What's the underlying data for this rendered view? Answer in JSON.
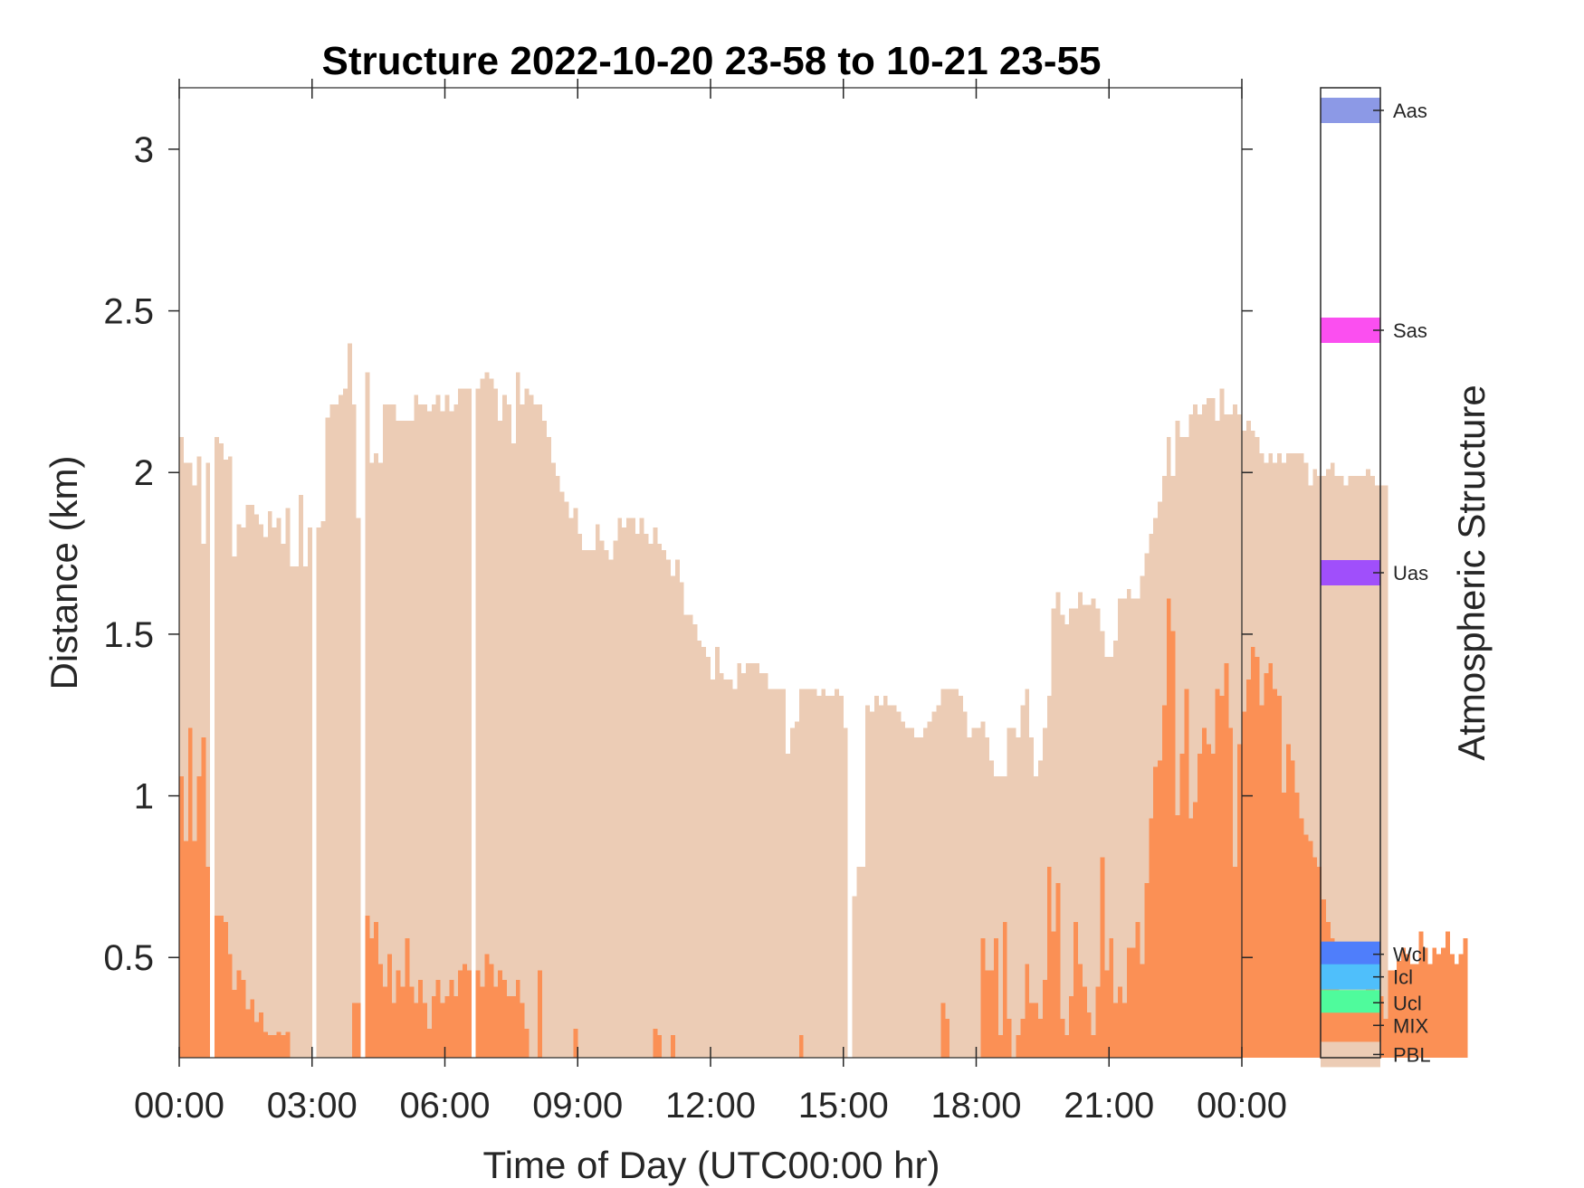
{
  "chart_data": {
    "type": "bar",
    "title": "Structure 2022-10-20 23-58 to 10-21 23-55",
    "xlabel": "Time of Day (UTC00:00 hr)",
    "ylabel": "Distance (km)",
    "xlim": [
      0,
      24
    ],
    "ylim": [
      0.19,
      3.19
    ],
    "xticks": [
      0,
      3,
      6,
      9,
      12,
      15,
      18,
      21,
      24
    ],
    "xtick_labels": [
      "00:00",
      "03:00",
      "06:00",
      "09:00",
      "12:00",
      "15:00",
      "18:00",
      "21:00",
      "00:00"
    ],
    "yticks": [
      0.5,
      1,
      1.5,
      2,
      2.5,
      3
    ],
    "ytick_labels": [
      "0.5",
      "1",
      "1.5",
      "2",
      "2.5",
      "3"
    ],
    "grid": false,
    "bin_hours": 0.1,
    "series": [
      {
        "name": "PBL",
        "color": "#ecccb5",
        "values": [
          2.11,
          2.03,
          2.03,
          1.96,
          2.05,
          1.78,
          2.03,
          0,
          2.11,
          2.09,
          2.04,
          2.05,
          1.74,
          1.84,
          1.83,
          1.9,
          1.9,
          1.87,
          1.84,
          1.8,
          1.88,
          1.83,
          1.86,
          1.78,
          1.89,
          1.71,
          1.71,
          1.93,
          1.71,
          1.83,
          0,
          1.83,
          1.85,
          2.17,
          2.21,
          2.21,
          2.24,
          2.26,
          2.4,
          2.21,
          1.86,
          0,
          2.31,
          2.03,
          2.06,
          2.03,
          2.21,
          2.21,
          2.21,
          2.16,
          2.16,
          2.16,
          2.16,
          2.24,
          2.21,
          2.21,
          2.19,
          2.21,
          2.24,
          2.19,
          2.24,
          2.19,
          2.21,
          2.26,
          2.26,
          2.26,
          0,
          2.26,
          2.29,
          2.31,
          2.29,
          2.26,
          2.16,
          2.24,
          2.21,
          2.09,
          2.31,
          2.21,
          2.26,
          2.24,
          2.21,
          2.21,
          2.16,
          2.11,
          2.03,
          1.99,
          1.94,
          1.91,
          1.86,
          1.89,
          1.81,
          1.76,
          1.76,
          1.76,
          1.84,
          1.79,
          1.76,
          1.73,
          1.79,
          1.86,
          1.83,
          1.86,
          1.86,
          1.81,
          1.86,
          1.81,
          1.78,
          1.83,
          1.78,
          1.76,
          1.73,
          1.68,
          1.73,
          1.66,
          1.56,
          1.56,
          1.53,
          1.48,
          1.46,
          1.43,
          1.36,
          1.46,
          1.38,
          1.36,
          1.36,
          1.33,
          1.41,
          1.38,
          1.41,
          1.41,
          1.41,
          1.38,
          1.38,
          1.33,
          1.33,
          1.33,
          1.33,
          1.13,
          1.21,
          1.23,
          1.33,
          1.33,
          1.33,
          1.33,
          1.31,
          1.33,
          1.31,
          1.31,
          1.33,
          1.31,
          1.21,
          0,
          0.69,
          0.78,
          0.78,
          1.28,
          1.26,
          1.31,
          1.28,
          1.31,
          1.28,
          1.28,
          1.26,
          1.23,
          1.21,
          1.21,
          1.18,
          1.18,
          1.21,
          1.23,
          1.26,
          1.28,
          1.33,
          1.33,
          1.33,
          1.33,
          1.31,
          1.26,
          1.18,
          1.21,
          1.21,
          1.23,
          1.18,
          1.11,
          1.06,
          1.06,
          1.06,
          1.21,
          1.21,
          1.18,
          1.28,
          1.33,
          1.18,
          1.06,
          1.11,
          1.21,
          1.31,
          1.58,
          1.63,
          1.56,
          1.53,
          1.58,
          1.58,
          1.63,
          1.59,
          1.59,
          1.61,
          1.58,
          1.51,
          1.43,
          1.43,
          1.48,
          1.61,
          1.61,
          1.64,
          1.61,
          1.61,
          1.68,
          1.75,
          1.81,
          1.86,
          1.91,
          1.99,
          2.11,
          1.99,
          2.16,
          2.11,
          2.11,
          2.18,
          2.21,
          2.18,
          2.21,
          2.23,
          2.23,
          2.16,
          2.26,
          2.18,
          2.18,
          2.21,
          2.18,
          2.13,
          2.16,
          2.13,
          2.11,
          2.06,
          2.03,
          2.06,
          2.03,
          2.06,
          2.03,
          2.06,
          2.06,
          2.06,
          2.06,
          2.03,
          1.96,
          2.01,
          1.99,
          1.99,
          2.01,
          2.03,
          1.99,
          1.99,
          1.96,
          1.99,
          1.99,
          1.99,
          1.99,
          2.01,
          1.99,
          1.96,
          1.96,
          1.96
        ]
      },
      {
        "name": "MIX",
        "color": "#fb9055",
        "values": [
          1.06,
          0.86,
          1.21,
          0.86,
          1.06,
          1.18,
          0.78,
          0,
          0.63,
          0.63,
          0.61,
          0.51,
          0.4,
          0.46,
          0.43,
          0.34,
          0.37,
          0.3,
          0.33,
          0.27,
          0.26,
          0.26,
          0.27,
          0.26,
          0.27,
          0,
          0,
          0,
          0,
          0,
          0,
          0,
          0,
          0,
          0,
          0,
          0,
          0,
          0,
          0.36,
          0.36,
          0,
          0.63,
          0.56,
          0.61,
          0.48,
          0.41,
          0.51,
          0.36,
          0.46,
          0.41,
          0.56,
          0.41,
          0.36,
          0.43,
          0.36,
          0.28,
          0.38,
          0.43,
          0.36,
          0.38,
          0.43,
          0.38,
          0.46,
          0.48,
          0.46,
          0,
          0.46,
          0.41,
          0.51,
          0.48,
          0.41,
          0.46,
          0.43,
          0.38,
          0.38,
          0.43,
          0.36,
          0.28,
          0,
          0,
          0.46,
          0,
          0,
          0,
          0,
          0,
          0,
          0,
          0.28,
          0,
          0,
          0,
          0,
          0,
          0,
          0,
          0,
          0,
          0,
          0,
          0,
          0,
          0,
          0,
          0,
          0,
          0.28,
          0.26,
          0,
          0,
          0.26,
          0,
          0,
          0,
          0,
          0,
          0,
          0,
          0,
          0,
          0,
          0,
          0,
          0,
          0,
          0,
          0,
          0,
          0,
          0,
          0,
          0,
          0,
          0,
          0,
          0,
          0,
          0,
          0,
          0.26,
          0,
          0,
          0,
          0,
          0,
          0,
          0,
          0,
          0,
          0,
          0,
          0,
          0,
          0,
          0,
          0,
          0,
          0,
          0,
          0,
          0,
          0,
          0,
          0,
          0,
          0,
          0,
          0,
          0,
          0,
          0,
          0.36,
          0.31,
          0,
          0,
          0,
          0,
          0,
          0,
          0,
          0.56,
          0.46,
          0.46,
          0.56,
          0.26,
          0.61,
          0.31,
          0,
          0.26,
          0.31,
          0.48,
          0.36,
          0.36,
          0.31,
          0.43,
          0.78,
          0.58,
          0.73,
          0.31,
          0.26,
          0.38,
          0.61,
          0.48,
          0.41,
          0.33,
          0.26,
          0.41,
          0.81,
          0.46,
          0.56,
          0.36,
          0.41,
          0.36,
          0.53,
          0.53,
          0.61,
          0.48,
          0.73,
          0.93,
          1.09,
          1.11,
          1.28,
          1.61,
          1.51,
          0.94,
          1.13,
          1.33,
          0.93,
          0.98,
          1.13,
          1.21,
          1.16,
          1.13,
          1.33,
          1.31,
          1.41,
          1.21,
          0.78,
          1.16,
          1.26,
          1.36,
          1.46,
          1.43,
          1.28,
          1.38,
          1.41,
          1.33,
          1.31,
          1.01,
          1.16,
          1.11,
          1.01,
          0.93,
          0.88,
          0.86,
          0.81,
          0.78,
          0.68,
          0.61,
          0.56,
          0.41,
          0.33,
          0.31,
          0.27,
          0.36,
          0.33,
          0.36,
          0.51,
          0.47,
          0.26,
          0.38,
          0.31,
          0.46,
          0.46,
          0.49,
          0.53,
          0.51,
          0.48,
          0.48,
          0.58,
          0.53,
          0.48,
          0.53,
          0.51,
          0.53,
          0.58,
          0.51,
          0.48,
          0.51,
          0.56
        ]
      }
    ]
  },
  "colorbar": {
    "label": "Atmospheric Structure",
    "categories": [
      {
        "name": "Aas",
        "color": "#8c99e6",
        "value": 3.12
      },
      {
        "name": "Sas",
        "color": "#fb4ff0",
        "value": 2.44
      },
      {
        "name": "Uas",
        "color": "#a04ffb",
        "value": 1.69
      },
      {
        "name": "Wcl",
        "color": "#4f7efb",
        "value": 0.51
      },
      {
        "name": "Icl",
        "color": "#4fbffb",
        "value": 0.44
      },
      {
        "name": "Ucl",
        "color": "#4ffb9c",
        "value": 0.36
      },
      {
        "name": "MIX",
        "color": "#fb9055",
        "value": 0.29
      },
      {
        "name": "PBL",
        "color": "#ecccb5",
        "value": 0.2
      }
    ]
  }
}
